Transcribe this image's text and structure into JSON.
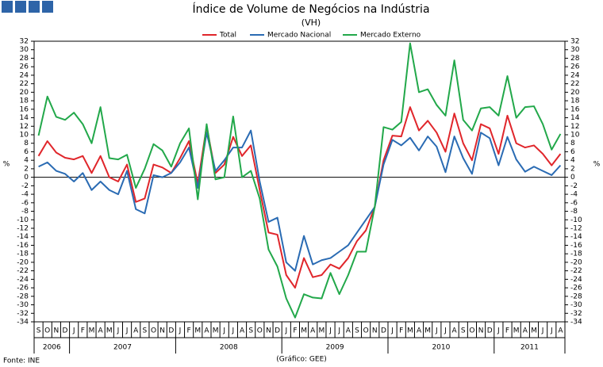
{
  "chart_data": {
    "type": "line",
    "title": "Índice de Volume de Negócios na Indústria",
    "subtitle": "(VH)",
    "y_label": "%",
    "source": "Fonte: INE",
    "credit": "(Gráfico: GEE)",
    "categories": [
      "S",
      "O",
      "N",
      "D",
      "J",
      "F",
      "M",
      "A",
      "M",
      "J",
      "J",
      "A",
      "S",
      "O",
      "N",
      "D",
      "J",
      "F",
      "M",
      "A",
      "M",
      "J",
      "J",
      "A",
      "S",
      "O",
      "N",
      "D",
      "J",
      "F",
      "M",
      "A",
      "M",
      "J",
      "J",
      "A",
      "S",
      "O",
      "N",
      "D",
      "J",
      "F",
      "M",
      "A",
      "M",
      "J",
      "J",
      "A",
      "S",
      "O",
      "N",
      "D",
      "J",
      "F",
      "M",
      "A",
      "M",
      "J",
      "J",
      "A"
    ],
    "years": [
      "2006",
      "2007",
      "2008",
      "2009",
      "2010",
      "2011"
    ],
    "series": [
      {
        "name": "Total",
        "color": "#e0262b",
        "values": [
          5,
          8.5,
          5.8,
          4.6,
          4.2,
          5,
          1,
          5,
          0,
          -1,
          3,
          -5.8,
          -5,
          3,
          2.3,
          1,
          4.5,
          8.5,
          -1.5,
          12,
          1,
          3,
          9.5,
          5,
          7.5,
          -3,
          -13,
          -13.5,
          -23,
          -26,
          -19,
          -23.5,
          -23,
          -20.5,
          -21.5,
          -19,
          -15,
          -12.5,
          -7,
          4,
          9.8,
          9.6,
          16.5,
          11,
          13.3,
          10.5,
          6,
          15,
          8,
          4,
          12.5,
          11.5,
          5.5,
          14.5,
          8,
          7,
          7.5,
          5.5,
          2.8,
          5.5
        ]
      },
      {
        "name": "Mercado Nacional",
        "color": "#2a6bb3",
        "values": [
          2.5,
          3.5,
          1.5,
          0.8,
          -1,
          1,
          -3,
          -1,
          -3,
          -4,
          1.5,
          -7.5,
          -8.5,
          0.5,
          0,
          1,
          3.5,
          7,
          -2.5,
          10.5,
          1.5,
          4,
          7,
          7,
          11,
          -1,
          -10.5,
          -9.5,
          -20,
          -22,
          -13.8,
          -20.5,
          -19.5,
          -19,
          -17.5,
          -16,
          -13,
          -10,
          -7,
          3,
          8.8,
          7.5,
          9.3,
          6.3,
          9.6,
          7.2,
          1.2,
          9.6,
          4.5,
          0.8,
          10.5,
          9.2,
          2.8,
          9.5,
          4.2,
          1.3,
          2.5,
          1.5,
          0.5,
          2.8
        ]
      },
      {
        "name": "Mercado Externo",
        "color": "#22a84a",
        "values": [
          9.8,
          19,
          14.2,
          13.5,
          15.2,
          12.5,
          8,
          16.5,
          4.5,
          4.2,
          5.3,
          -2.5,
          2,
          7.8,
          6.3,
          2.5,
          8,
          11.5,
          -5.2,
          12.5,
          -0.5,
          0,
          14.3,
          0,
          1.5,
          -5,
          -17,
          -21,
          -28.5,
          -33,
          -27.5,
          -28.3,
          -28.5,
          -22.5,
          -27.5,
          -23,
          -17.5,
          -17.5,
          -7,
          11.8,
          11.2,
          13,
          31.5,
          20,
          20.7,
          17,
          14.5,
          27.5,
          13.5,
          11,
          16.2,
          16.5,
          14.5,
          23.8,
          14,
          16.5,
          16.7,
          12.5,
          6.5,
          10.2
        ]
      }
    ],
    "ylim": [
      -34,
      32
    ],
    "yticks": [
      -34,
      -32,
      -30,
      -28,
      -26,
      -24,
      -22,
      -20,
      -18,
      -16,
      -14,
      -12,
      -10,
      -8,
      -6,
      -4,
      -2,
      0,
      2,
      4,
      6,
      8,
      10,
      12,
      14,
      16,
      18,
      20,
      22,
      24,
      26,
      28,
      30,
      32
    ],
    "grid": false,
    "zero_line": true,
    "legend": "top"
  }
}
